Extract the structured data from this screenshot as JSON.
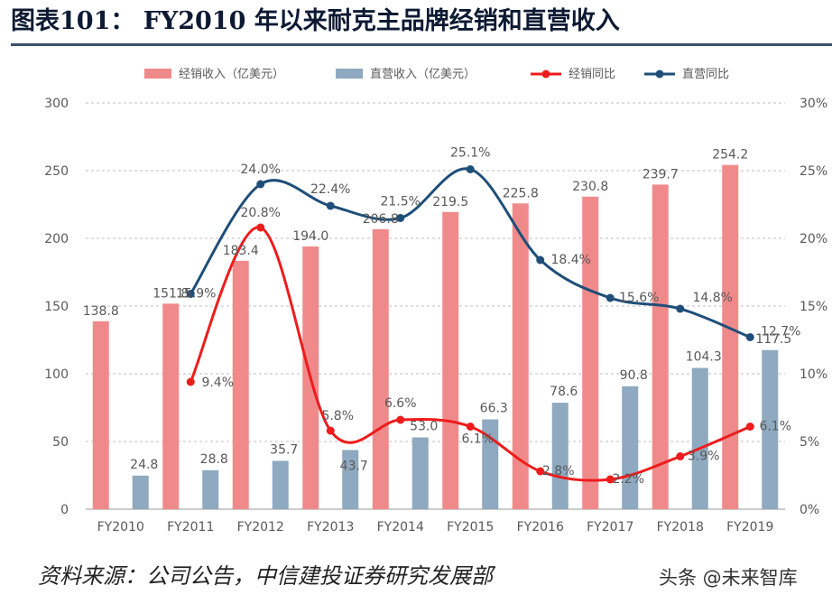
{
  "header": {
    "title": "图表101：  FY2010 年以来耐克主品牌经销和直营收入"
  },
  "footer": {
    "source": "资料来源：公司公告，中信建投证券研究发展部",
    "watermark": "头条 @未来智库"
  },
  "colors": {
    "wholesale_bar": "#f08a8a",
    "direct_bar": "#8ea9c0",
    "wholesale_line": "#ee1c1c",
    "direct_line": "#1f4e79",
    "grid": "#bfbfbf",
    "text": "#595959"
  },
  "chart_data": {
    "type": "bar",
    "categories": [
      "FY2010",
      "FY2011",
      "FY2012",
      "FY2013",
      "FY2014",
      "FY2015",
      "FY2016",
      "FY2017",
      "FY2018",
      "FY2019"
    ],
    "series": [
      {
        "name": "经销收入（亿美元）",
        "type": "bar",
        "axis": "left",
        "values": [
          138.8,
          151.8,
          183.4,
          194.0,
          206.8,
          219.5,
          225.8,
          230.8,
          239.7,
          254.2
        ],
        "labels": [
          "138.8",
          "151.8",
          "183.4",
          "194.0",
          "206.8",
          "219.5",
          "225.8",
          "230.8",
          "239.7",
          "254.2"
        ]
      },
      {
        "name": "直营收入（亿美元）",
        "type": "bar",
        "axis": "left",
        "values": [
          24.8,
          28.8,
          35.7,
          43.7,
          53.0,
          66.3,
          78.6,
          90.8,
          104.3,
          117.5
        ],
        "labels": [
          "24.8",
          "28.8",
          "35.7",
          "43.7",
          "53.0",
          "66.3",
          "78.6",
          "90.8",
          "104.3",
          "117.5"
        ]
      },
      {
        "name": "经销同比",
        "type": "line",
        "axis": "right",
        "values": [
          null,
          9.4,
          20.8,
          5.8,
          6.6,
          6.1,
          2.8,
          2.2,
          3.9,
          6.1
        ],
        "labels": [
          "",
          "9.4%",
          "20.8%",
          "5.8%",
          "6.6%",
          "6.1%",
          "2.8%",
          "2.2%",
          "3.9%",
          "6.1%"
        ]
      },
      {
        "name": "直营同比",
        "type": "line",
        "axis": "right",
        "values": [
          null,
          15.9,
          24.0,
          22.4,
          21.5,
          25.1,
          18.4,
          15.6,
          14.8,
          12.7
        ],
        "labels": [
          "",
          "15.9%",
          "24.0%",
          "22.4%",
          "21.5%",
          "25.1%",
          "18.4%",
          "15.6%",
          "14.8%",
          "12.7%"
        ]
      }
    ],
    "left_axis": {
      "ylim": [
        0,
        300
      ],
      "ticks": [
        "0",
        "50",
        "100",
        "150",
        "200",
        "250",
        "300"
      ]
    },
    "right_axis": {
      "ylim": [
        0,
        30
      ],
      "ticks": [
        "0%",
        "5%",
        "10%",
        "15%",
        "20%",
        "25%",
        "30%"
      ]
    },
    "legend_position": "top",
    "grid": "horizontal dashed"
  }
}
